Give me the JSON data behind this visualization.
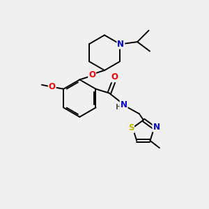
{
  "bg_color": "#f0f0f0",
  "atom_colors": {
    "C": "#000000",
    "N": "#0000cd",
    "O": "#ff0000",
    "S": "#b8b800",
    "H": "#555555"
  },
  "bond_color": "#000000",
  "bond_lw": 1.4,
  "font_size": 8.5,
  "small_font": 7.5
}
